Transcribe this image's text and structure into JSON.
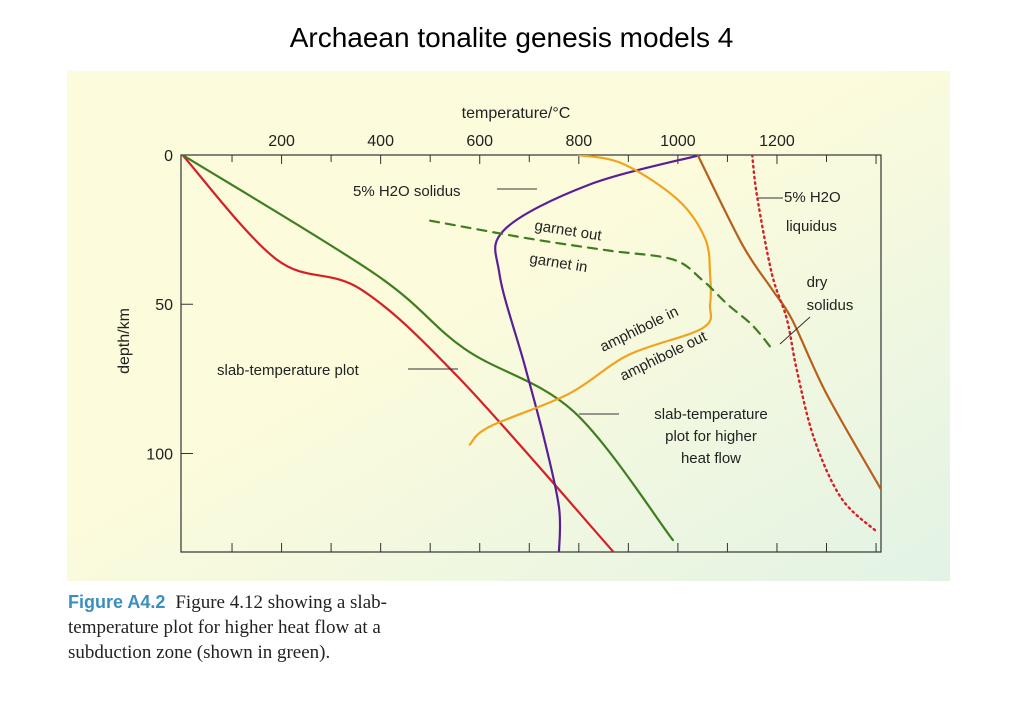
{
  "page_title": "Archaean tonalite genesis models 4",
  "caption": {
    "label": "Figure A4.2",
    "text": "Figure 4.12 showing a slab-temperature plot for higher heat flow at a subduction zone (shown in green)."
  },
  "chart_data": {
    "type": "line",
    "xlabel": "temperature/°C",
    "ylabel": "depth/km",
    "x_axis_position": "top",
    "y_inverted": true,
    "xlim": [
      -3,
      1410
    ],
    "ylim": [
      0,
      133
    ],
    "x_ticks": [
      200,
      400,
      600,
      800,
      1000,
      1200
    ],
    "y_ticks": [
      0,
      50,
      100
    ],
    "grid": false,
    "background_colors": [
      "#fcfbdc",
      "#e2f3e5"
    ],
    "series": [
      {
        "key": "slab",
        "color": "#d42027",
        "dash": "solid",
        "x": [
          0,
          190,
          360,
          560,
          870
        ],
        "y": [
          0,
          35,
          45,
          75,
          133
        ]
      },
      {
        "key": "slab_high",
        "color": "#3f7d20",
        "dash": "solid",
        "x": [
          0,
          390,
          570,
          790,
          990
        ],
        "y": [
          0,
          40,
          65,
          86,
          129
        ]
      },
      {
        "key": "wet_solidus",
        "color": "#5a1f96",
        "dash": "solid",
        "x": [
          1045,
          820,
          650,
          640,
          690,
          730,
          760,
          760
        ],
        "y": [
          0,
          10,
          25,
          40,
          70,
          95,
          118,
          133
        ]
      },
      {
        "key": "amphibole",
        "color": "#f2a31d",
        "dash": "solid",
        "x": [
          800,
          890,
          1000,
          1055,
          1065,
          1065,
          1050,
          900,
          780,
          620,
          580
        ],
        "y": [
          0,
          3,
          15,
          28,
          40,
          50,
          58,
          67,
          80,
          91,
          97
        ]
      },
      {
        "key": "garnet",
        "color": "#3f7d20",
        "dash": "dashed",
        "x": [
          500,
          700,
          860,
          990,
          1050,
          1100,
          1150,
          1190
        ],
        "y": [
          22,
          28,
          32,
          35,
          42,
          50,
          57,
          65
        ]
      },
      {
        "key": "dry_solidus",
        "color": "#b8601b",
        "dash": "solid",
        "x": [
          1040,
          1130,
          1190,
          1230,
          1300,
          1410
        ],
        "y": [
          0,
          30,
          45,
          55,
          80,
          112
        ]
      },
      {
        "key": "wet_liquidus",
        "color": "#d42027",
        "dash": "dotted",
        "x": [
          1150,
          1160,
          1190,
          1220,
          1240,
          1275,
          1330,
          1400
        ],
        "y": [
          0,
          14,
          40,
          55,
          72,
          95,
          115,
          126
        ]
      }
    ],
    "annotations": {
      "wet_solidus": "5% H2O solidus",
      "wet_liquidus_1": "5% H2O",
      "wet_liquidus_2": "liquidus",
      "garnet_out": "garnet out",
      "garnet_in": "garnet in",
      "amphibole_in": "amphibole in",
      "amphibole_out": "amphibole out",
      "dry_solidus_1": "dry",
      "dry_solidus_2": "solidus",
      "slab": "slab-temperature plot",
      "slab_high_1": "slab-temperature",
      "slab_high_2": "plot for higher",
      "slab_high_3": "heat flow"
    }
  }
}
